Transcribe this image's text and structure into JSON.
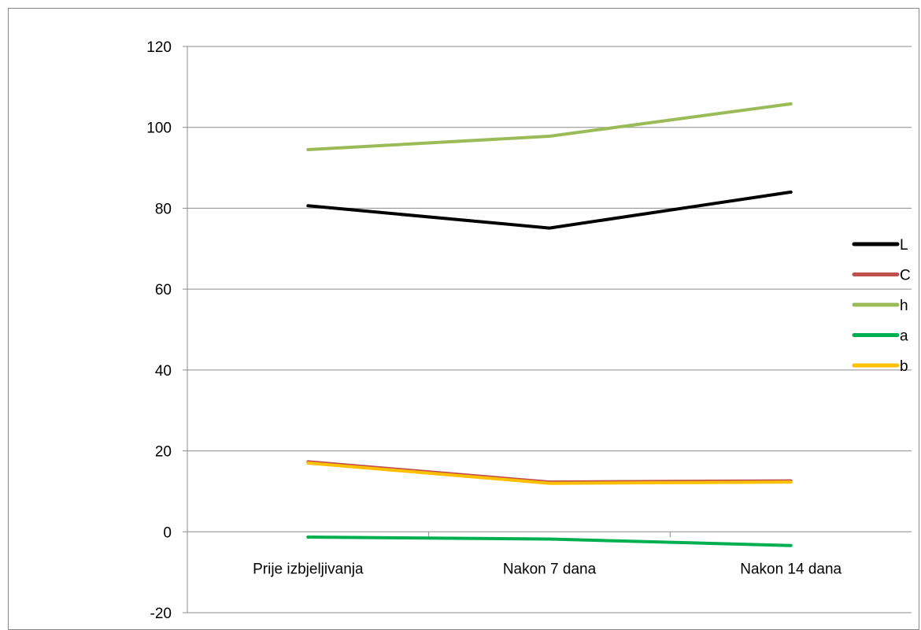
{
  "chart_data": {
    "type": "line",
    "categories": [
      "Prije izbjeljivanja",
      "Nakon 7 dana",
      "Nakon 14 dana"
    ],
    "ylim": [
      -20,
      120
    ],
    "yticks": [
      -20,
      0,
      20,
      40,
      60,
      80,
      100,
      120
    ],
    "grid": true,
    "legend_position": "right",
    "series": [
      {
        "name": "L",
        "color": "#000000",
        "values": [
          80.6,
          75.1,
          84.0
        ]
      },
      {
        "name": "C",
        "color": "#c0504d",
        "values": [
          17.3,
          12.3,
          12.6
        ]
      },
      {
        "name": "h",
        "color": "#9bbb59",
        "values": [
          94.5,
          97.8,
          105.8
        ]
      },
      {
        "name": "a",
        "color": "#00b050",
        "values": [
          -1.3,
          -1.8,
          -3.4
        ]
      },
      {
        "name": "b",
        "color": "#ffc000",
        "values": [
          17.0,
          12.0,
          12.3
        ]
      }
    ]
  }
}
